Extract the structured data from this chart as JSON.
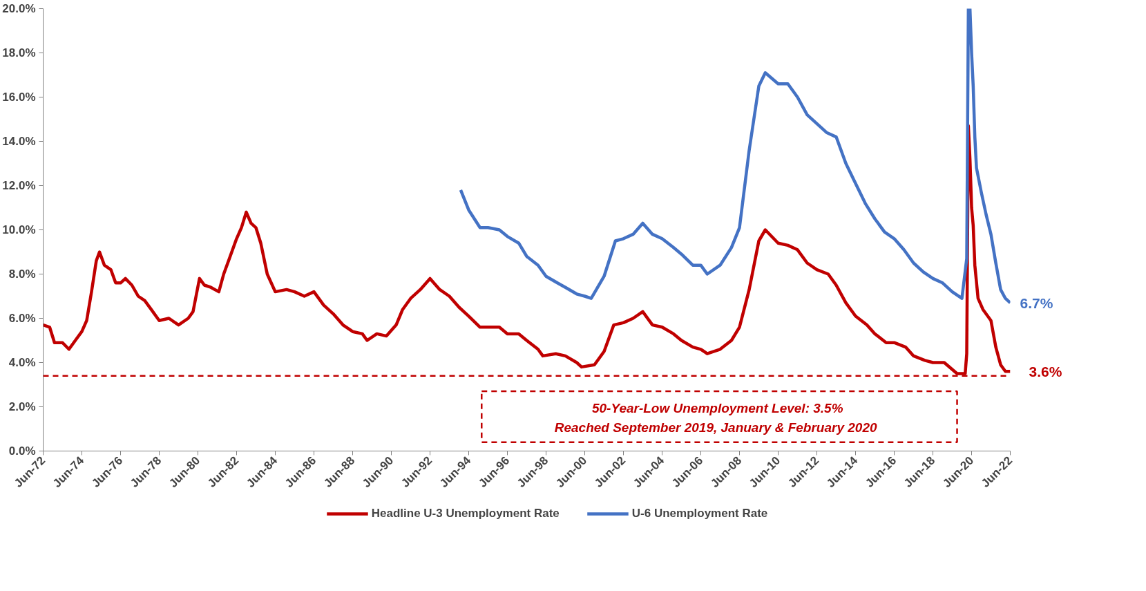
{
  "chart_data": {
    "type": "line",
    "xlim": [
      "1972-06",
      "2022-06"
    ],
    "xticks": [
      {
        "value": "1972-06",
        "label": "Jun-72"
      },
      {
        "value": "1974-06",
        "label": "Jun-74"
      },
      {
        "value": "1976-06",
        "label": "Jun-76"
      },
      {
        "value": "1978-06",
        "label": "Jun-78"
      },
      {
        "value": "1980-06",
        "label": "Jun-80"
      },
      {
        "value": "1982-06",
        "label": "Jun-82"
      },
      {
        "value": "1984-06",
        "label": "Jun-84"
      },
      {
        "value": "1986-06",
        "label": "Jun-86"
      },
      {
        "value": "1988-06",
        "label": "Jun-88"
      },
      {
        "value": "1990-06",
        "label": "Jun-90"
      },
      {
        "value": "1992-06",
        "label": "Jun-92"
      },
      {
        "value": "1994-06",
        "label": "Jun-94"
      },
      {
        "value": "1996-06",
        "label": "Jun-96"
      },
      {
        "value": "1998-06",
        "label": "Jun-98"
      },
      {
        "value": "2000-06",
        "label": "Jun-00"
      },
      {
        "value": "2002-06",
        "label": "Jun-02"
      },
      {
        "value": "2004-06",
        "label": "Jun-04"
      },
      {
        "value": "2006-06",
        "label": "Jun-06"
      },
      {
        "value": "2008-06",
        "label": "Jun-08"
      },
      {
        "value": "2010-06",
        "label": "Jun-10"
      },
      {
        "value": "2012-06",
        "label": "Jun-12"
      },
      {
        "value": "2014-06",
        "label": "Jun-14"
      },
      {
        "value": "2016-06",
        "label": "Jun-16"
      },
      {
        "value": "2018-06",
        "label": "Jun-18"
      },
      {
        "value": "2020-06",
        "label": "Jun-20"
      },
      {
        "value": "2022-06",
        "label": "Jun-22"
      }
    ],
    "ylim": [
      0,
      20
    ],
    "yticks": [
      {
        "value": 0,
        "label": "0.0%"
      },
      {
        "value": 2,
        "label": "2.0%"
      },
      {
        "value": 4,
        "label": "4.0%"
      },
      {
        "value": 6,
        "label": "6.0%"
      },
      {
        "value": 8,
        "label": "8.0%"
      },
      {
        "value": 10,
        "label": "10.0%"
      },
      {
        "value": 12,
        "label": "12.0%"
      },
      {
        "value": 14,
        "label": "14.0%"
      },
      {
        "value": 16,
        "label": "16.0%"
      },
      {
        "value": 18,
        "label": "18.0%"
      },
      {
        "value": 20,
        "label": "20.0%"
      }
    ],
    "grid": false,
    "legend": "bottom",
    "marker": "none",
    "line_style": "solid",
    "series": [
      {
        "name": "Headline U-3 Unemployment Rate",
        "color": "#c00000",
        "x": [
          "1972-06",
          "1972-10",
          "1973-01",
          "1973-06",
          "1973-10",
          "1974-03",
          "1974-06",
          "1974-09",
          "1974-12",
          "1975-03",
          "1975-05",
          "1975-08",
          "1975-12",
          "1976-03",
          "1976-06",
          "1976-09",
          "1977-01",
          "1977-05",
          "1977-09",
          "1978-01",
          "1978-06",
          "1978-12",
          "1979-06",
          "1979-12",
          "1980-03",
          "1980-07",
          "1980-10",
          "1981-02",
          "1981-07",
          "1981-10",
          "1982-01",
          "1982-06",
          "1982-09",
          "1982-12",
          "1983-03",
          "1983-06",
          "1983-09",
          "1984-01",
          "1984-06",
          "1985-01",
          "1985-06",
          "1985-12",
          "1986-06",
          "1986-12",
          "1987-06",
          "1987-12",
          "1988-06",
          "1988-12",
          "1989-03",
          "1989-09",
          "1990-03",
          "1990-09",
          "1991-01",
          "1991-06",
          "1991-12",
          "1992-06",
          "1992-12",
          "1993-06",
          "1993-12",
          "1994-06",
          "1995-01",
          "1995-06",
          "1996-01",
          "1996-06",
          "1997-01",
          "1997-06",
          "1998-01",
          "1998-04",
          "1998-12",
          "1999-06",
          "2000-01",
          "2000-04",
          "2000-12",
          "2001-06",
          "2001-12",
          "2002-06",
          "2002-12",
          "2003-06",
          "2003-12",
          "2004-06",
          "2005-01",
          "2005-06",
          "2006-01",
          "2006-06",
          "2006-10",
          "2007-06",
          "2008-01",
          "2008-06",
          "2008-12",
          "2009-06",
          "2009-10",
          "2010-06",
          "2010-12",
          "2011-06",
          "2011-12",
          "2012-06",
          "2013-01",
          "2013-06",
          "2013-12",
          "2014-06",
          "2015-01",
          "2015-06",
          "2016-01",
          "2016-06",
          "2017-01",
          "2017-06",
          "2018-01",
          "2018-06",
          "2019-01",
          "2019-09",
          "2020-02",
          "2020-03",
          "2020-04",
          "2020-05",
          "2020-06",
          "2020-07",
          "2020-08",
          "2020-10",
          "2021-01",
          "2021-06",
          "2021-09",
          "2021-12",
          "2022-03",
          "2022-06"
        ],
        "values": [
          5.7,
          5.6,
          4.9,
          4.9,
          4.6,
          5.1,
          5.4,
          5.9,
          7.2,
          8.6,
          9.0,
          8.4,
          8.2,
          7.6,
          7.6,
          7.8,
          7.5,
          7.0,
          6.8,
          6.4,
          5.9,
          6.0,
          5.7,
          6.0,
          6.3,
          7.8,
          7.5,
          7.4,
          7.2,
          8.0,
          8.6,
          9.6,
          10.1,
          10.8,
          10.3,
          10.1,
          9.4,
          8.0,
          7.2,
          7.3,
          7.2,
          7.0,
          7.2,
          6.6,
          6.2,
          5.7,
          5.4,
          5.3,
          5.0,
          5.3,
          5.2,
          5.7,
          6.4,
          6.9,
          7.3,
          7.8,
          7.3,
          7.0,
          6.5,
          6.1,
          5.6,
          5.6,
          5.6,
          5.3,
          5.3,
          5.0,
          4.6,
          4.3,
          4.4,
          4.3,
          4.0,
          3.8,
          3.9,
          4.5,
          5.7,
          5.8,
          6.0,
          6.3,
          5.7,
          5.6,
          5.3,
          5.0,
          4.7,
          4.6,
          4.4,
          4.6,
          5.0,
          5.6,
          7.3,
          9.5,
          10.0,
          9.4,
          9.3,
          9.1,
          8.5,
          8.2,
          8.0,
          7.5,
          6.7,
          6.1,
          5.7,
          5.3,
          4.9,
          4.9,
          4.7,
          4.3,
          4.1,
          4.0,
          4.0,
          3.5,
          3.5,
          4.4,
          14.7,
          13.2,
          11.0,
          10.2,
          8.4,
          6.9,
          6.4,
          5.9,
          4.7,
          3.9,
          3.6,
          3.6
        ]
      },
      {
        "name": "U-6 Unemployment Rate",
        "color": "#4472c4",
        "x": [
          "1994-01",
          "1994-06",
          "1995-01",
          "1995-06",
          "1996-01",
          "1996-06",
          "1997-01",
          "1997-06",
          "1998-01",
          "1998-06",
          "1999-01",
          "1999-06",
          "2000-01",
          "2000-06",
          "2000-10",
          "2001-06",
          "2002-01",
          "2002-06",
          "2002-12",
          "2003-06",
          "2003-12",
          "2004-06",
          "2005-01",
          "2005-06",
          "2006-01",
          "2006-06",
          "2006-10",
          "2007-06",
          "2008-01",
          "2008-06",
          "2008-12",
          "2009-06",
          "2009-10",
          "2010-06",
          "2010-12",
          "2011-06",
          "2011-12",
          "2012-06",
          "2012-12",
          "2013-06",
          "2013-12",
          "2014-06",
          "2014-12",
          "2015-06",
          "2015-12",
          "2016-06",
          "2016-12",
          "2017-06",
          "2017-12",
          "2018-06",
          "2018-12",
          "2019-06",
          "2019-12",
          "2020-03",
          "2020-04",
          "2020-05",
          "2020-06",
          "2020-07",
          "2020-08",
          "2020-09",
          "2020-12",
          "2021-03",
          "2021-06",
          "2021-09",
          "2021-12",
          "2022-03",
          "2022-06"
        ],
        "values": [
          11.8,
          10.9,
          10.1,
          10.1,
          10.0,
          9.7,
          9.4,
          8.8,
          8.4,
          7.9,
          7.6,
          7.4,
          7.1,
          7.0,
          6.9,
          7.9,
          9.5,
          9.6,
          9.8,
          10.3,
          9.8,
          9.6,
          9.2,
          8.9,
          8.4,
          8.4,
          8.0,
          8.4,
          9.2,
          10.1,
          13.6,
          16.5,
          17.1,
          16.6,
          16.6,
          16.0,
          15.2,
          14.8,
          14.4,
          14.2,
          13.0,
          12.1,
          11.2,
          10.5,
          9.9,
          9.6,
          9.1,
          8.5,
          8.1,
          7.8,
          7.6,
          7.2,
          6.9,
          8.7,
          20.0,
          20.0,
          18.0,
          16.5,
          14.2,
          12.8,
          11.7,
          10.7,
          9.8,
          8.5,
          7.3,
          6.9,
          6.7
        ]
      }
    ],
    "ref_lines": [
      {
        "axis": "y",
        "value": 3.4,
        "color": "#c00000",
        "line_style": "dashed"
      }
    ],
    "annotations": [
      "50-Year-Low Unemployment  Level: 3.5%",
      "Reached  September  2019, January & February 2020",
      {
        "text": "6.7%",
        "x": "2022-06",
        "y": 6.7
      },
      {
        "text": "3.6%",
        "x": "2022-06",
        "y": 3.6
      }
    ]
  }
}
